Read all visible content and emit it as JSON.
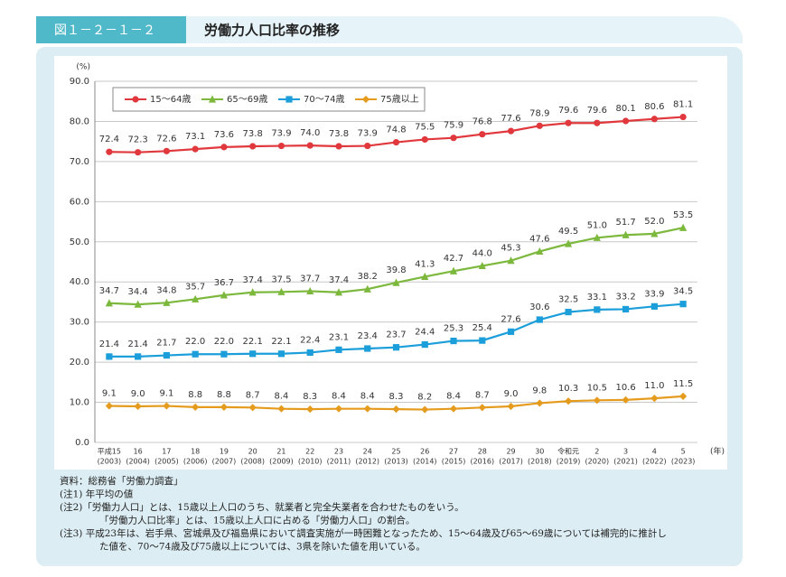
{
  "figure_label": "図１－２－１－２",
  "notes": [
    "資料：総務省「労働力調査」",
    "(注1) 年平均の値",
    "(注2)「労働力人口」とは、15歳以上人口のうち、就業者と完全失業者を合わせたものをいう。",
    "「労働力人口比率」とは、15歳以上人口に占める「労働力人口」の割合。",
    "(注3) 平成23年は、岩手県、宮城県及び福島県において調査実施が一時困難となったため、15～64歳及び65～69歳については補完的に推計し",
    "た値を、70～74歳及び75歳以上については、3県を除いた値を用いている。"
  ],
  "chart_data": {
    "type": "line",
    "title": "労働力人口比率の推移",
    "y_unit": "(%)",
    "x_unit": "(年)",
    "categories": [
      "平成15",
      "16",
      "17",
      "18",
      "19",
      "20",
      "21",
      "22",
      "23",
      "24",
      "25",
      "26",
      "27",
      "28",
      "29",
      "30",
      "令和元",
      "2",
      "3",
      "4",
      "5"
    ],
    "category_years": [
      "(2003)",
      "(2004)",
      "(2005)",
      "(2006)",
      "(2007)",
      "(2008)",
      "(2009)",
      "(2010)",
      "(2011)",
      "(2012)",
      "(2013)",
      "(2014)",
      "(2015)",
      "(2016)",
      "(2017)",
      "(2018)",
      "(2019)",
      "(2020)",
      "(2021)",
      "(2022)",
      "(2023)"
    ],
    "ylim": [
      0,
      90
    ],
    "yticks": [
      {
        "value": 0,
        "label": "0.0"
      },
      {
        "value": 10,
        "label": "10.0"
      },
      {
        "value": 20,
        "label": "20.0"
      },
      {
        "value": 30,
        "label": "30.0"
      },
      {
        "value": 40,
        "label": "40.0"
      },
      {
        "value": 50,
        "label": "50.0"
      },
      {
        "value": 60,
        "label": "60.0"
      },
      {
        "value": 70,
        "label": "70.0"
      },
      {
        "value": 80,
        "label": "80.0"
      },
      {
        "value": 90,
        "label": "90.0"
      }
    ],
    "grid": true,
    "series": [
      {
        "name": "15～64歳",
        "color": "#e0383c",
        "marker": "circle",
        "values": [
          72.4,
          72.3,
          72.6,
          73.1,
          73.6,
          73.8,
          73.9,
          74.0,
          73.8,
          73.9,
          74.8,
          75.5,
          75.9,
          76.8,
          77.6,
          78.9,
          79.6,
          79.6,
          80.1,
          80.6,
          81.1
        ],
        "value_labels": [
          "72.4",
          "72.3",
          "72.6",
          "73.1",
          "73.6",
          "73.8",
          "73.9",
          "74.0",
          "73.8",
          "73.9",
          "74.8",
          "75.5",
          "75.9",
          "76.8",
          "77.6",
          "78.9",
          "79.6",
          "79.6",
          "80.1",
          "80.6",
          "81.1"
        ]
      },
      {
        "name": "65～69歳",
        "color": "#7bb83c",
        "marker": "triangle",
        "values": [
          34.7,
          34.4,
          34.8,
          35.7,
          36.7,
          37.4,
          37.5,
          37.7,
          37.4,
          38.2,
          39.8,
          41.3,
          42.7,
          44.0,
          45.3,
          47.6,
          49.5,
          51.0,
          51.7,
          52.0,
          53.5
        ],
        "value_labels": [
          "34.7",
          "34.4",
          "34.8",
          "35.7",
          "36.7",
          "37.4",
          "37.5",
          "37.7",
          "37.4",
          "38.2",
          "39.8",
          "41.3",
          "42.7",
          "44.0",
          "45.3",
          "47.6",
          "49.5",
          "51.0",
          "51.7",
          "52.0",
          "53.5"
        ]
      },
      {
        "name": "70～74歳",
        "color": "#1b9ed9",
        "marker": "square",
        "values": [
          21.4,
          21.4,
          21.7,
          22.0,
          22.0,
          22.1,
          22.1,
          22.4,
          23.1,
          23.4,
          23.7,
          24.4,
          25.3,
          25.4,
          27.6,
          30.6,
          32.5,
          33.1,
          33.2,
          33.9,
          34.5
        ],
        "value_labels": [
          "21.4",
          "21.4",
          "21.7",
          "22.0",
          "22.0",
          "22.1",
          "22.1",
          "22.4",
          "23.1",
          "23.4",
          "23.7",
          "24.4",
          "25.3",
          "25.4",
          "27.6",
          "30.6",
          "32.5",
          "33.1",
          "33.2",
          "33.9",
          "34.5"
        ]
      },
      {
        "name": "75歳以上",
        "color": "#e59c1e",
        "marker": "diamond",
        "values": [
          9.1,
          9.0,
          9.1,
          8.8,
          8.8,
          8.7,
          8.4,
          8.3,
          8.4,
          8.4,
          8.3,
          8.2,
          8.4,
          8.7,
          9.0,
          9.8,
          10.3,
          10.5,
          10.6,
          11.0,
          11.5
        ],
        "value_labels": [
          "9.1",
          "9.0",
          "9.1",
          "8.8",
          "8.8",
          "8.7",
          "8.4",
          "8.3",
          "8.4",
          "8.4",
          "8.3",
          "8.2",
          "8.4",
          "8.7",
          "9.0",
          "9.8",
          "10.3",
          "10.5",
          "10.6",
          "11.0",
          "11.5"
        ]
      }
    ]
  }
}
